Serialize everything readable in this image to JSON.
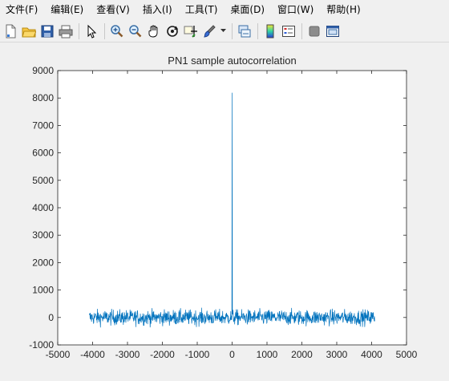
{
  "window": {
    "menus": [
      "文件(F)",
      "编辑(E)",
      "查看(V)",
      "插入(I)",
      "工具(T)",
      "桌面(D)",
      "窗口(W)",
      "帮助(H)"
    ]
  },
  "toolbar": {
    "buttons": [
      {
        "name": "new-figure-icon"
      },
      {
        "name": "open-file-icon"
      },
      {
        "name": "save-icon"
      },
      {
        "name": "print-icon"
      },
      {
        "name": "separator"
      },
      {
        "name": "edit-plot-pointer-icon"
      },
      {
        "name": "separator"
      },
      {
        "name": "zoom-in-icon"
      },
      {
        "name": "zoom-out-icon"
      },
      {
        "name": "pan-hand-icon"
      },
      {
        "name": "rotate-3d-icon"
      },
      {
        "name": "data-cursor-icon"
      },
      {
        "name": "brush-icon"
      },
      {
        "name": "brush-dropdown"
      },
      {
        "name": "separator"
      },
      {
        "name": "link-plot-icon"
      },
      {
        "name": "separator"
      },
      {
        "name": "colorbar-icon"
      },
      {
        "name": "legend-icon"
      },
      {
        "name": "separator"
      },
      {
        "name": "hide-plot-tools-icon"
      },
      {
        "name": "show-plot-tools-icon"
      }
    ]
  },
  "chart_data": {
    "type": "line",
    "title": "PN1 sample autocorrelation",
    "xlabel": "",
    "ylabel": "",
    "xlim": [
      -5000,
      5000
    ],
    "ylim": [
      -1000,
      9000
    ],
    "xticks": [
      -5000,
      -4000,
      -3000,
      -2000,
      -1000,
      0,
      1000,
      2000,
      3000,
      4000,
      5000
    ],
    "yticks": [
      -1000,
      0,
      1000,
      2000,
      3000,
      4000,
      5000,
      6000,
      7000,
      8000,
      9000
    ],
    "x_range": [
      -4095,
      4095
    ],
    "peak": {
      "x": 0,
      "y": 8191
    },
    "noise_band": [
      -450,
      450
    ],
    "grid": false,
    "line_color": "#0072bd"
  }
}
